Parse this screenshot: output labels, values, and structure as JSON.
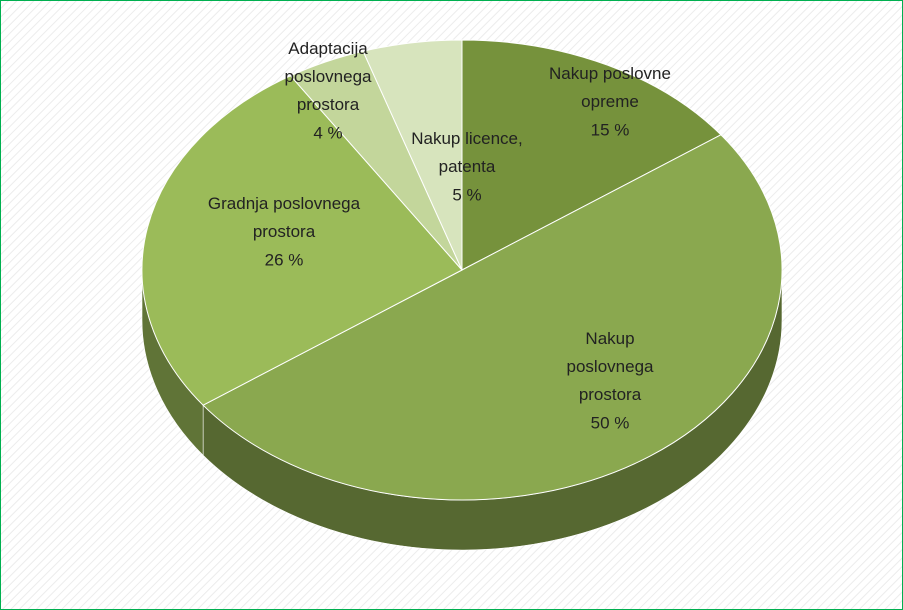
{
  "chart_data": {
    "type": "pie",
    "categories": [
      "Nakup poslovne opreme",
      "Nakup poslovnega prostora",
      "Gradnja poslovnega prostora",
      "Adaptacija poslovnega prostora",
      "Nakup licence, patenta"
    ],
    "values": [
      15,
      50,
      26,
      4,
      5
    ],
    "value_labels": [
      "15 %",
      "50 %",
      "26 %",
      "4 %",
      "5 %"
    ],
    "colors": [
      "#76923c",
      "#8aa84f",
      "#9bbb59",
      "#c3d69b",
      "#d7e4bd"
    ]
  }
}
